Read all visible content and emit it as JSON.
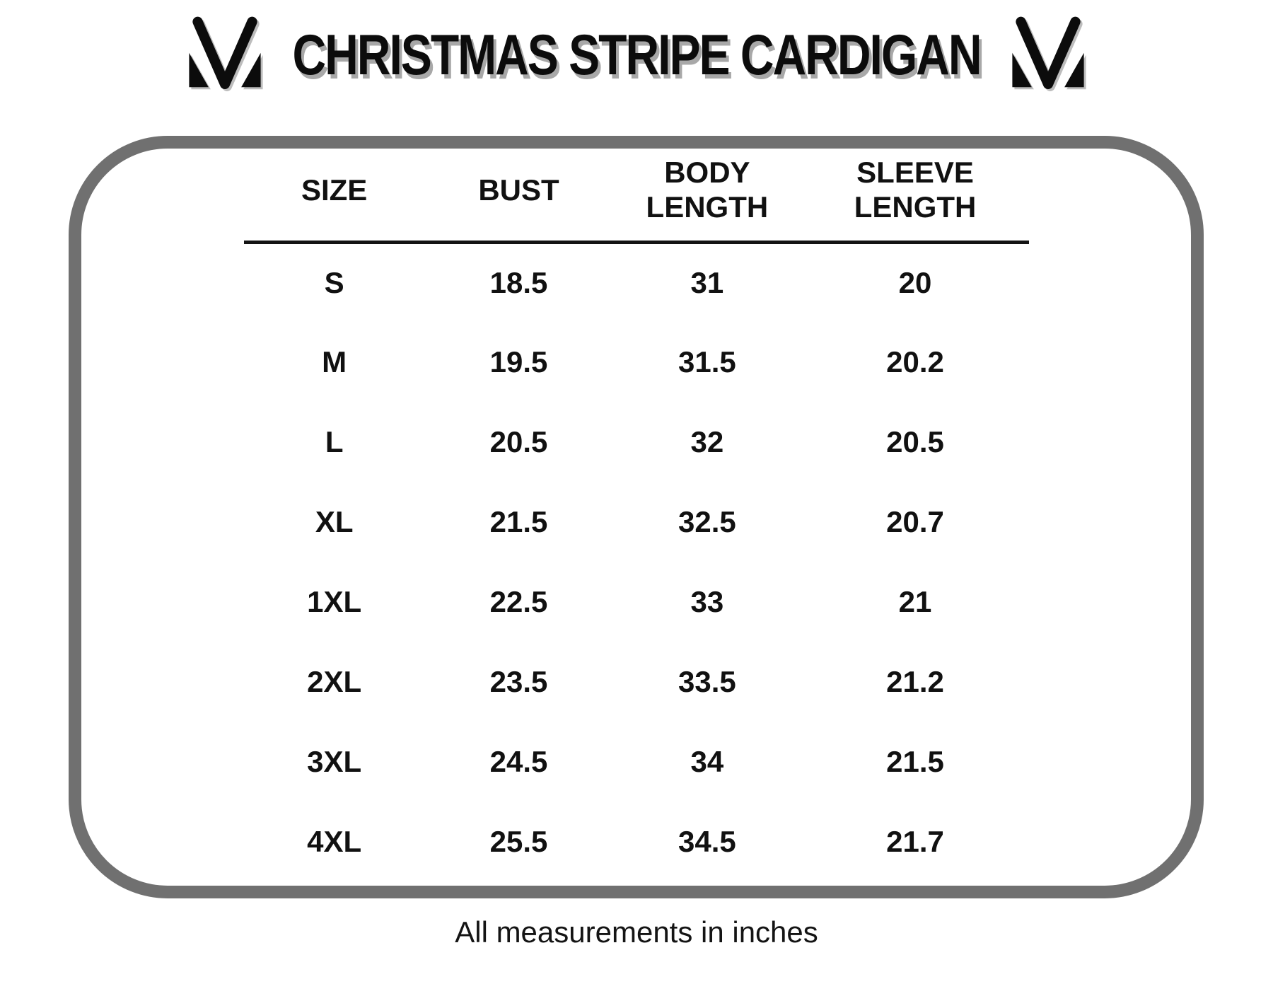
{
  "chart_data": {
    "type": "table",
    "title": "CHRISTMAS STRIPE CARDIGAN",
    "columns": [
      "SIZE",
      "BUST",
      "BODY LENGTH",
      "SLEEVE LENGTH"
    ],
    "rows": [
      [
        "S",
        "18.5",
        "31",
        "20"
      ],
      [
        "M",
        "19.5",
        "31.5",
        "20.2"
      ],
      [
        "L",
        "20.5",
        "32",
        "20.5"
      ],
      [
        "XL",
        "21.5",
        "32.5",
        "20.7"
      ],
      [
        "1XL",
        "22.5",
        "33",
        "21"
      ],
      [
        "2XL",
        "23.5",
        "33.5",
        "21.2"
      ],
      [
        "3XL",
        "24.5",
        "34",
        "21.5"
      ],
      [
        "4XL",
        "25.5",
        "34.5",
        "21.7"
      ]
    ],
    "footnote": "All measurements in inches",
    "units": "inches"
  },
  "brand": {
    "logo": "m-checkmark-logo"
  },
  "colors": {
    "panel_border": "#707070",
    "text": "#111111",
    "title_shadow": "#a8a8a8"
  }
}
